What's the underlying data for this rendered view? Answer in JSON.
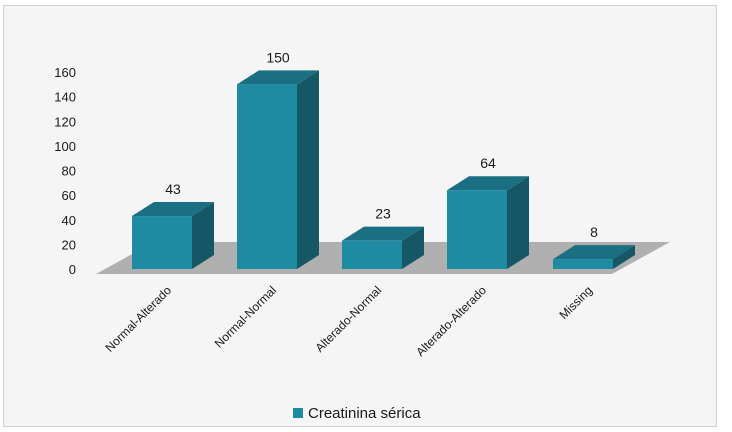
{
  "chart_data": {
    "type": "bar",
    "categories": [
      "Normal-Alterado",
      "Normal-Normal",
      "Alterado-Normal",
      "Alterado-Alterado",
      "Missing"
    ],
    "series": [
      {
        "name": "Creatinina sérica",
        "values": [
          43,
          150,
          23,
          64,
          8
        ]
      }
    ],
    "yticks": [
      "0",
      "20",
      "40",
      "60",
      "80",
      "100",
      "120",
      "140",
      "160"
    ],
    "ylim": [
      0,
      160
    ],
    "grid": false,
    "legend_position": "bottom",
    "three_d": true,
    "colors": {
      "bar_front": "#1f8ba2",
      "bar_top": "#1a6f82",
      "bar_side": "#165766",
      "floor": "#b0b0b0",
      "legend_swatch": "#1f8ba2"
    }
  }
}
